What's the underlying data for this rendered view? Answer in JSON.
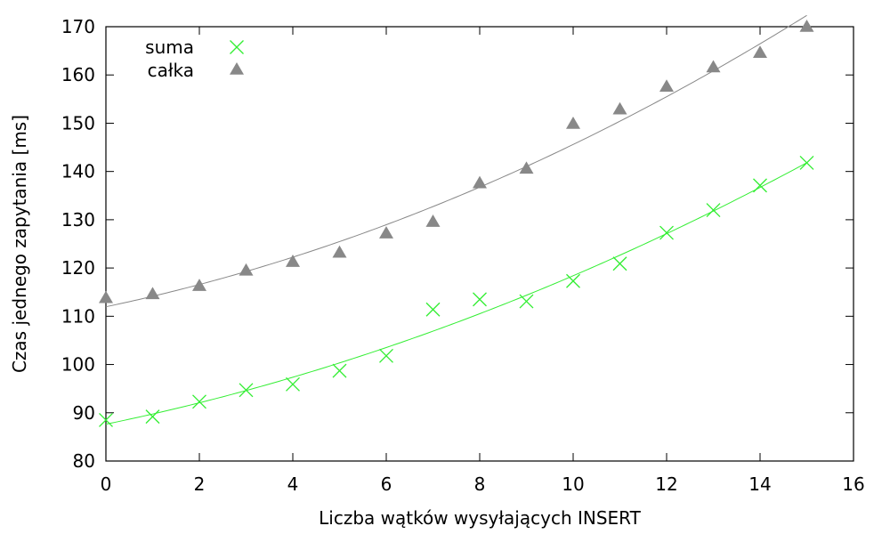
{
  "chart_data": {
    "type": "scatter",
    "title": "",
    "xlabel": "Liczba wątków wysyłających INSERT",
    "ylabel": "Czas jednego zapytania [ms]",
    "xlim": [
      0,
      16
    ],
    "ylim": [
      80,
      170
    ],
    "xticks": [
      0,
      2,
      4,
      6,
      8,
      10,
      12,
      14,
      16
    ],
    "yticks": [
      80,
      90,
      100,
      110,
      120,
      130,
      140,
      150,
      160,
      170
    ],
    "grid": false,
    "legend_position": "top-left",
    "series": [
      {
        "name": "suma",
        "marker": "x",
        "color": "#33ee33",
        "x": [
          0,
          1,
          2,
          3,
          4,
          5,
          6,
          7,
          8,
          9,
          10,
          11,
          12,
          13,
          14,
          15
        ],
        "y": [
          88.5,
          89.2,
          92.3,
          94.7,
          95.9,
          98.7,
          101.8,
          111.4,
          113.5,
          113.1,
          117.3,
          120.9,
          127.3,
          132.0,
          137.1,
          141.8
        ],
        "fit_curve": true
      },
      {
        "name": "całka",
        "marker": "triangle",
        "color": "#888888",
        "x": [
          0,
          1,
          2,
          3,
          4,
          5,
          6,
          7,
          8,
          9,
          10,
          11,
          12,
          13,
          14,
          15
        ],
        "y": [
          113.8,
          114.6,
          116.3,
          119.5,
          121.3,
          123.2,
          127.2,
          129.6,
          137.6,
          140.6,
          149.9,
          152.9,
          157.6,
          161.6,
          164.6,
          170.0
        ],
        "fit_curve": true
      }
    ]
  }
}
